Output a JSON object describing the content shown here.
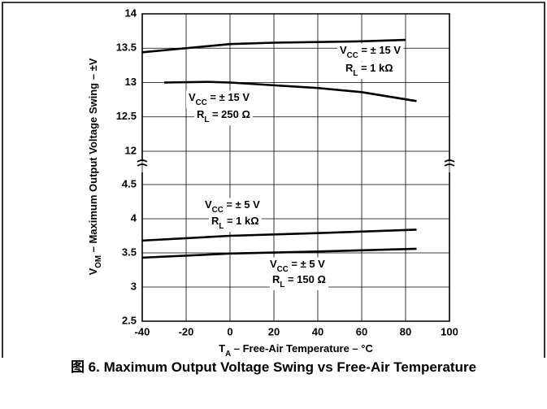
{
  "chart_data": {
    "type": "line",
    "caption": "图 6. Maximum Output Voltage Swing vs Free-Air Temperature",
    "ylabel": {
      "main": "V",
      "sub": "OM",
      "rest": " – Maximum Output Voltage Swing – ±V"
    },
    "xlabel": {
      "main": "T",
      "sub": "A",
      "rest": " – Free-Air Temperature – °C"
    },
    "xlim": [
      -40,
      100
    ],
    "xticks": [
      -40,
      -20,
      0,
      20,
      40,
      60,
      80,
      100
    ],
    "y_segments": [
      {
        "ylim": [
          12,
          14
        ],
        "yticks": [
          12,
          12.5,
          13,
          13.5,
          14
        ]
      },
      {
        "ylim": [
          2.5,
          4.5
        ],
        "yticks": [
          2.5,
          3,
          3.5,
          4,
          4.5
        ]
      }
    ],
    "grid": true,
    "series": [
      {
        "color": "#000000",
        "x": [
          -40,
          -20,
          0,
          20,
          40,
          60,
          80
        ],
        "values": [
          13.44,
          13.5,
          13.56,
          13.58,
          13.59,
          13.6,
          13.62
        ],
        "annotation": [
          {
            "main": "V",
            "sub": "CC",
            "rest": " = ± 15 V"
          },
          {
            "main": "R",
            "sub": "L",
            "rest": " = 1 kΩ"
          }
        ]
      },
      {
        "color": "#000000",
        "x": [
          -30,
          -10,
          0,
          20,
          40,
          60,
          85
        ],
        "values": [
          13.0,
          13.01,
          13.0,
          12.96,
          12.92,
          12.86,
          12.73
        ],
        "annotation": [
          {
            "main": "V",
            "sub": "CC",
            "rest": " = ± 15 V"
          },
          {
            "main": "R",
            "sub": "L",
            "rest": " = 250 Ω"
          }
        ]
      },
      {
        "color": "#000000",
        "x": [
          -40,
          0,
          40,
          85
        ],
        "values": [
          3.68,
          3.75,
          3.79,
          3.84
        ],
        "annotation": [
          {
            "main": "V",
            "sub": "CC",
            "rest": " = ± 5 V"
          },
          {
            "main": "R",
            "sub": "L",
            "rest": " = 1 kΩ"
          }
        ]
      },
      {
        "color": "#000000",
        "x": [
          -40,
          0,
          40,
          85
        ],
        "values": [
          3.43,
          3.49,
          3.52,
          3.56
        ],
        "annotation": [
          {
            "main": "V",
            "sub": "CC",
            "rest": " = ± 5 V"
          },
          {
            "main": "R",
            "sub": "L",
            "rest": " = 150 Ω"
          }
        ]
      }
    ]
  }
}
